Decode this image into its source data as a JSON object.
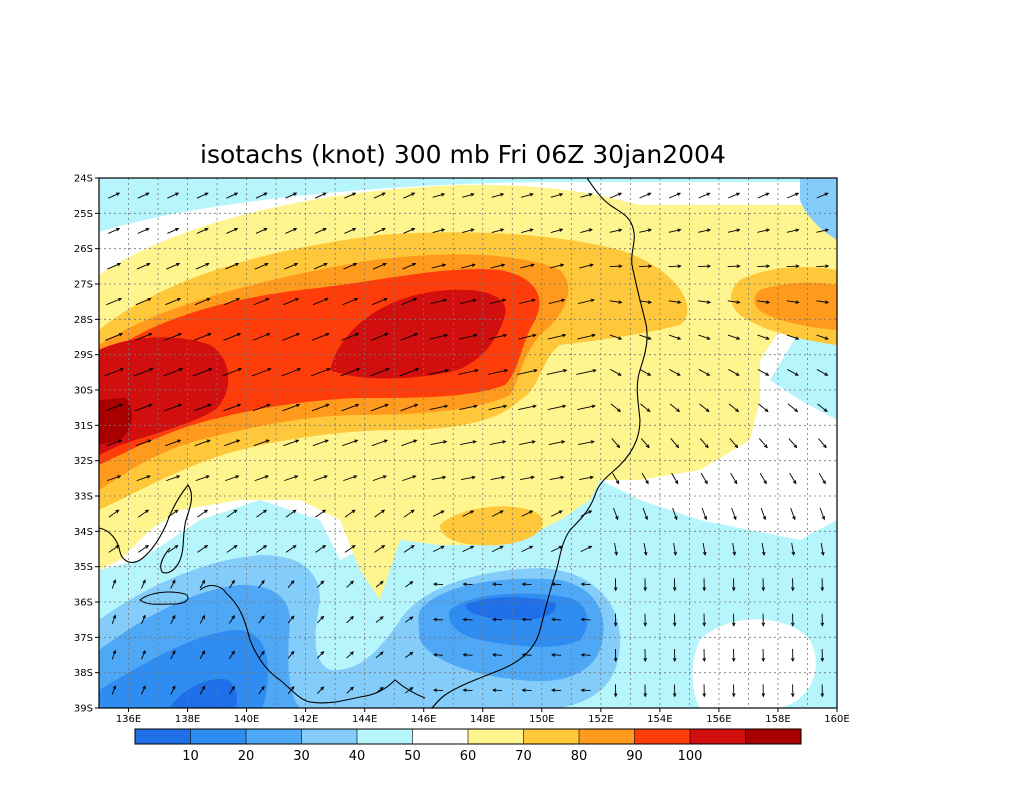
{
  "map": {
    "title": "isotachs (knot) 300 mb Fri 06Z 30jan2004",
    "lat_labels": [
      "24S",
      "25S",
      "26S",
      "27S",
      "28S",
      "29S",
      "30S",
      "31S",
      "32S",
      "33S",
      "34S",
      "35S",
      "36S",
      "37S",
      "38S",
      "39S"
    ],
    "lon_labels": [
      "136E",
      "138E",
      "140E",
      "142E",
      "144E",
      "146E",
      "148E",
      "150E",
      "152E",
      "154E",
      "156E",
      "158E",
      "160E"
    ],
    "lon_range": [
      135,
      160
    ],
    "lat_range": [
      -39,
      -24
    ],
    "grid": "dotted"
  },
  "colorbar": {
    "labels": [
      "10",
      "20",
      "30",
      "40",
      "50",
      "60",
      "70",
      "80",
      "90",
      "100"
    ],
    "colors": [
      "#1f6fe8",
      "#2f8cf0",
      "#4fa8f5",
      "#84ccf9",
      "#b5f5fb",
      "#ffffff",
      "#fff58f",
      "#ffc83a",
      "#ff9a1c",
      "#ff3d0a",
      "#d10f0f",
      "#a80000"
    ]
  },
  "colors": {
    "coastline": "#000000",
    "arrows": "#000000"
  }
}
